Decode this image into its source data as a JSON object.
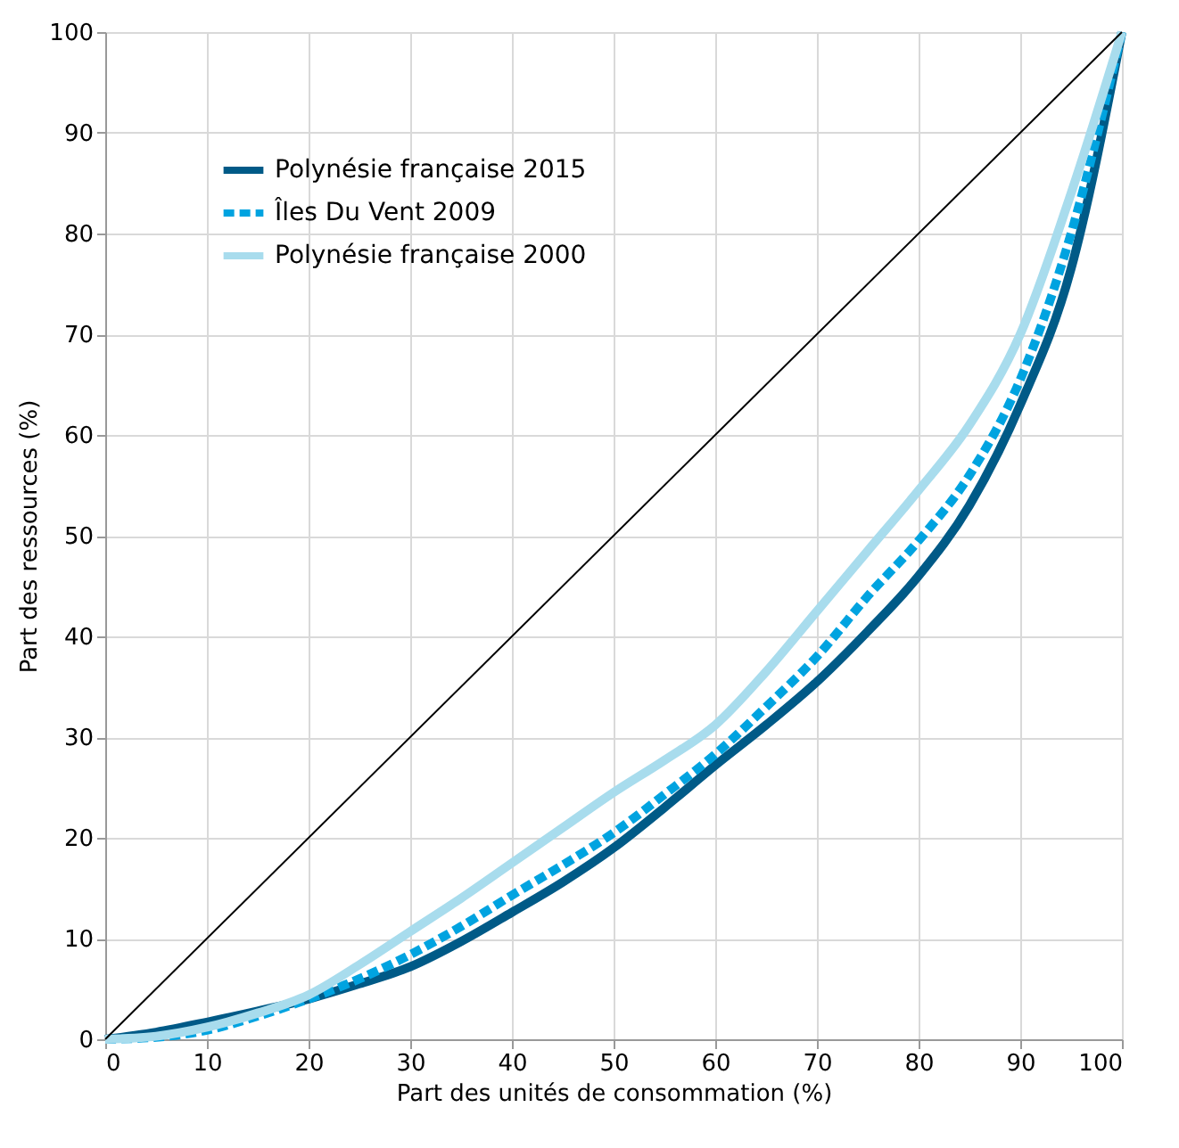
{
  "chart_data": {
    "type": "line",
    "xlabel": "Part des unités de consommation (%)",
    "ylabel": "Part des ressources (%)",
    "x": [
      0,
      5,
      10,
      15,
      20,
      25,
      30,
      35,
      40,
      45,
      50,
      55,
      60,
      65,
      70,
      75,
      80,
      85,
      90,
      95,
      100
    ],
    "series": [
      {
        "name": "Polynésie française 2015",
        "color": "#005a87",
        "line_style": "solid",
        "values": [
          0,
          0.7,
          1.7,
          2.8,
          4,
          5.5,
          7.2,
          9.7,
          12.6,
          15.6,
          19,
          23,
          27.2,
          31.2,
          35.5,
          40.5,
          46,
          53,
          63,
          76.5,
          100
        ]
      },
      {
        "name": "Îles Du Vent 2009",
        "color": "#00a3e0",
        "line_style": "dashed",
        "values": [
          0,
          0.2,
          0.9,
          2.3,
          4,
          6,
          8.4,
          11.2,
          14.3,
          17.3,
          20.5,
          24.3,
          28.3,
          33,
          38,
          44,
          49.5,
          56,
          65.5,
          80,
          100
        ]
      },
      {
        "name": "Polynésie française 2000",
        "color": "#a8dced",
        "line_style": "solid",
        "values": [
          0,
          0.3,
          1.2,
          2.6,
          4.4,
          7.4,
          10.7,
          14,
          17.5,
          21,
          24.5,
          27.7,
          31.2,
          36.5,
          42.5,
          48.5,
          54.5,
          61,
          70,
          84,
          100
        ]
      },
      {
        "color": "#000000",
        "line_style": "solid",
        "x": [
          0,
          100
        ],
        "values": [
          0,
          100
        ]
      }
    ],
    "xlim": [
      0,
      100
    ],
    "ylim": [
      0,
      100
    ],
    "xticks": [
      0,
      10,
      20,
      30,
      40,
      50,
      60,
      70,
      80,
      90,
      100
    ],
    "yticks": [
      0,
      10,
      20,
      30,
      40,
      50,
      60,
      70,
      80,
      90,
      100
    ],
    "grid": true,
    "legend": "top left",
    "marker": "none"
  }
}
